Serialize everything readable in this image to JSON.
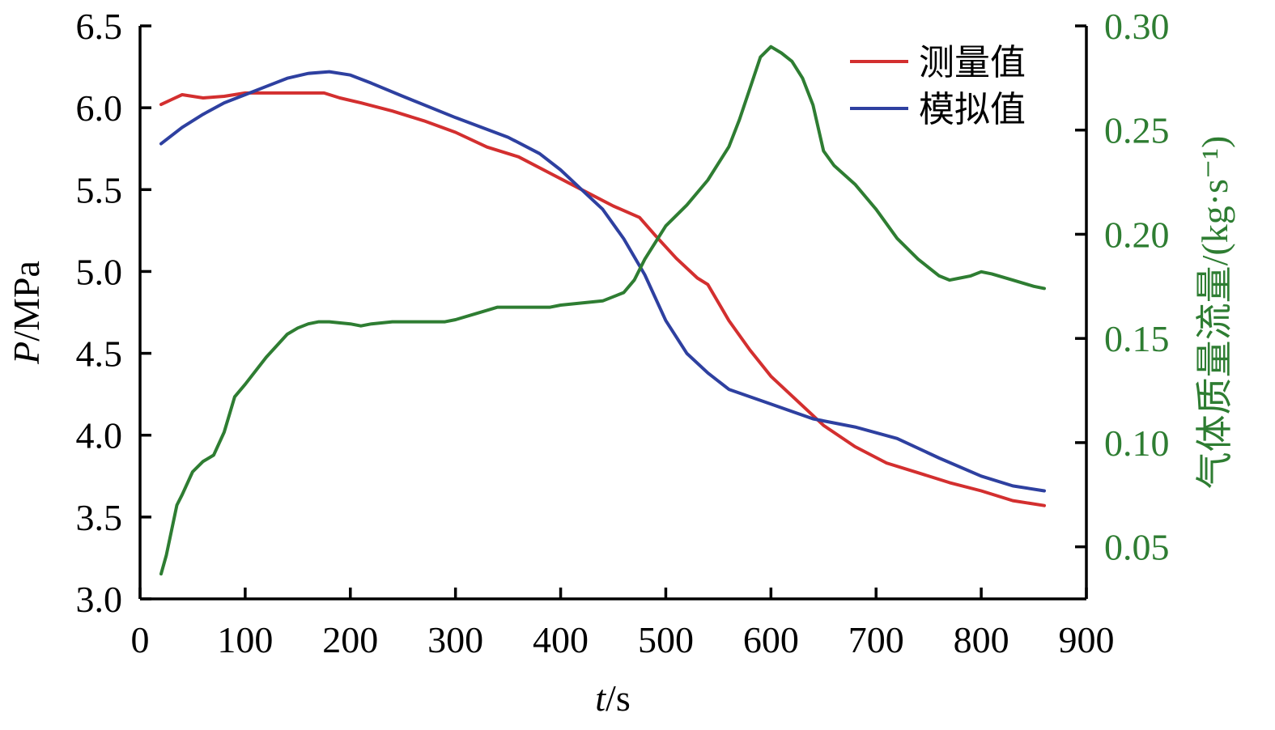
{
  "chart_data": {
    "type": "line",
    "xlabel_italic": "t",
    "xlabel_rest": "/s",
    "ylabel_italic": "P",
    "ylabel_rest": "/MPa",
    "y2label": "气体质量流量/(kg·s⁻¹)",
    "xlim": [
      0,
      900
    ],
    "ylim": [
      3.0,
      6.5
    ],
    "y2lim": [
      0.025,
      0.3
    ],
    "x_ticks": [
      0,
      100,
      200,
      300,
      400,
      500,
      600,
      700,
      800,
      900
    ],
    "y_ticks": [
      "3.0",
      "3.5",
      "4.0",
      "4.5",
      "5.0",
      "5.5",
      "6.0",
      "6.5"
    ],
    "y2_ticks": [
      "0.05",
      "0.10",
      "0.15",
      "0.20",
      "0.25",
      "0.30"
    ],
    "legend_position": "top-right",
    "series": [
      {
        "name": "测量值",
        "axis": "left",
        "color": "#d32f2f",
        "x": [
          20,
          30,
          40,
          50,
          60,
          80,
          100,
          120,
          140,
          160,
          175,
          190,
          210,
          240,
          270,
          300,
          330,
          360,
          390,
          420,
          450,
          475,
          490,
          510,
          530,
          540,
          560,
          580,
          600,
          620,
          650,
          680,
          710,
          740,
          770,
          800,
          830,
          860
        ],
        "y": [
          6.02,
          6.05,
          6.08,
          6.07,
          6.06,
          6.07,
          6.09,
          6.09,
          6.09,
          6.09,
          6.09,
          6.06,
          6.03,
          5.98,
          5.92,
          5.85,
          5.76,
          5.7,
          5.6,
          5.5,
          5.4,
          5.33,
          5.22,
          5.08,
          4.96,
          4.92,
          4.7,
          4.52,
          4.36,
          4.24,
          4.06,
          3.93,
          3.83,
          3.77,
          3.71,
          3.66,
          3.6,
          3.57
        ]
      },
      {
        "name": "模拟值",
        "axis": "left",
        "color": "#2e40a0",
        "x": [
          20,
          40,
          60,
          80,
          100,
          120,
          140,
          160,
          180,
          200,
          220,
          250,
          300,
          350,
          380,
          400,
          420,
          440,
          460,
          480,
          500,
          520,
          540,
          560,
          600,
          640,
          680,
          720,
          760,
          800,
          830,
          860
        ],
        "y": [
          5.78,
          5.88,
          5.96,
          6.03,
          6.08,
          6.13,
          6.18,
          6.21,
          6.22,
          6.2,
          6.15,
          6.07,
          5.94,
          5.82,
          5.72,
          5.62,
          5.5,
          5.38,
          5.2,
          4.98,
          4.7,
          4.5,
          4.38,
          4.28,
          4.19,
          4.1,
          4.05,
          3.98,
          3.86,
          3.75,
          3.69,
          3.66
        ]
      },
      {
        "name": "",
        "axis": "right",
        "color": "#2e7d32",
        "x": [
          20,
          25,
          30,
          35,
          40,
          50,
          60,
          70,
          80,
          90,
          100,
          120,
          140,
          150,
          160,
          170,
          180,
          200,
          210,
          220,
          240,
          260,
          280,
          290,
          300,
          320,
          340,
          360,
          380,
          390,
          400,
          420,
          440,
          450,
          460,
          470,
          480,
          500,
          520,
          540,
          560,
          570,
          580,
          590,
          600,
          610,
          620,
          630,
          640,
          650,
          660,
          680,
          700,
          720,
          740,
          760,
          770,
          780,
          790,
          800,
          810,
          830,
          850,
          860
        ],
        "y": [
          0.037,
          0.046,
          0.058,
          0.07,
          0.075,
          0.086,
          0.091,
          0.094,
          0.105,
          0.122,
          0.128,
          0.141,
          0.152,
          0.155,
          0.157,
          0.158,
          0.158,
          0.157,
          0.156,
          0.157,
          0.158,
          0.158,
          0.158,
          0.158,
          0.159,
          0.162,
          0.165,
          0.165,
          0.165,
          0.165,
          0.166,
          0.167,
          0.168,
          0.17,
          0.172,
          0.178,
          0.188,
          0.204,
          0.214,
          0.226,
          0.242,
          0.255,
          0.27,
          0.285,
          0.29,
          0.287,
          0.283,
          0.275,
          0.262,
          0.24,
          0.233,
          0.224,
          0.212,
          0.198,
          0.188,
          0.18,
          0.178,
          0.179,
          0.18,
          0.182,
          0.181,
          0.178,
          0.175,
          0.174
        ]
      }
    ]
  }
}
